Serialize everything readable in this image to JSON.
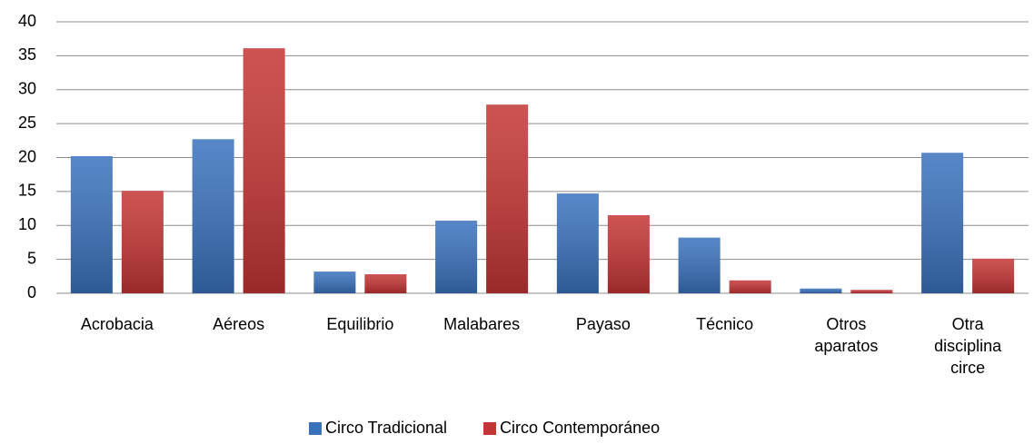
{
  "chart_data": {
    "type": "bar",
    "categories": [
      "Acrobacia",
      "Aéreos",
      "Equilibrio",
      "Malabares",
      "Payaso",
      "Técnico",
      "Otros aparatos",
      "Otra disciplina circe"
    ],
    "series": [
      {
        "name": "Circo Tradicional",
        "color": "#3a72bd",
        "values": [
          20.2,
          22.7,
          3.2,
          10.7,
          14.7,
          8.2,
          0.7,
          20.7
        ]
      },
      {
        "name": "Circo Contemporáneo",
        "color": "#c43535",
        "values": [
          15.1,
          36.1,
          2.8,
          27.8,
          11.5,
          1.9,
          0.5,
          5.1
        ]
      }
    ],
    "ylim": [
      0,
      40
    ],
    "yticks": [
      0,
      5,
      10,
      15,
      20,
      25,
      30,
      35,
      40
    ],
    "grid": true,
    "legend": "bottom"
  }
}
